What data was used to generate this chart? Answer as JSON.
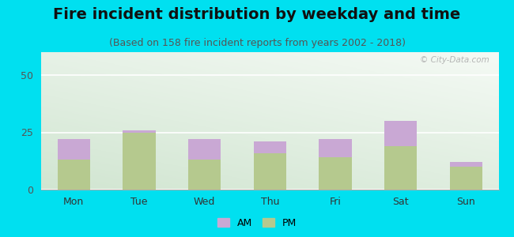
{
  "title": "Fire incident distribution by weekday and time",
  "subtitle": "(Based on 158 fire incident reports from years 2002 - 2018)",
  "days": [
    "Mon",
    "Tue",
    "Wed",
    "Thu",
    "Fri",
    "Sat",
    "Sun"
  ],
  "pm_values": [
    13,
    25,
    13,
    16,
    14,
    19,
    10
  ],
  "am_values": [
    9,
    1,
    9,
    5,
    8,
    11,
    2
  ],
  "am_color": "#c9a8d4",
  "pm_color": "#b5c98e",
  "ylim": [
    0,
    60
  ],
  "yticks": [
    0,
    25,
    50
  ],
  "outer_bg": "#00e0f0",
  "title_fontsize": 14,
  "subtitle_fontsize": 9,
  "watermark": "© City-Data.com"
}
